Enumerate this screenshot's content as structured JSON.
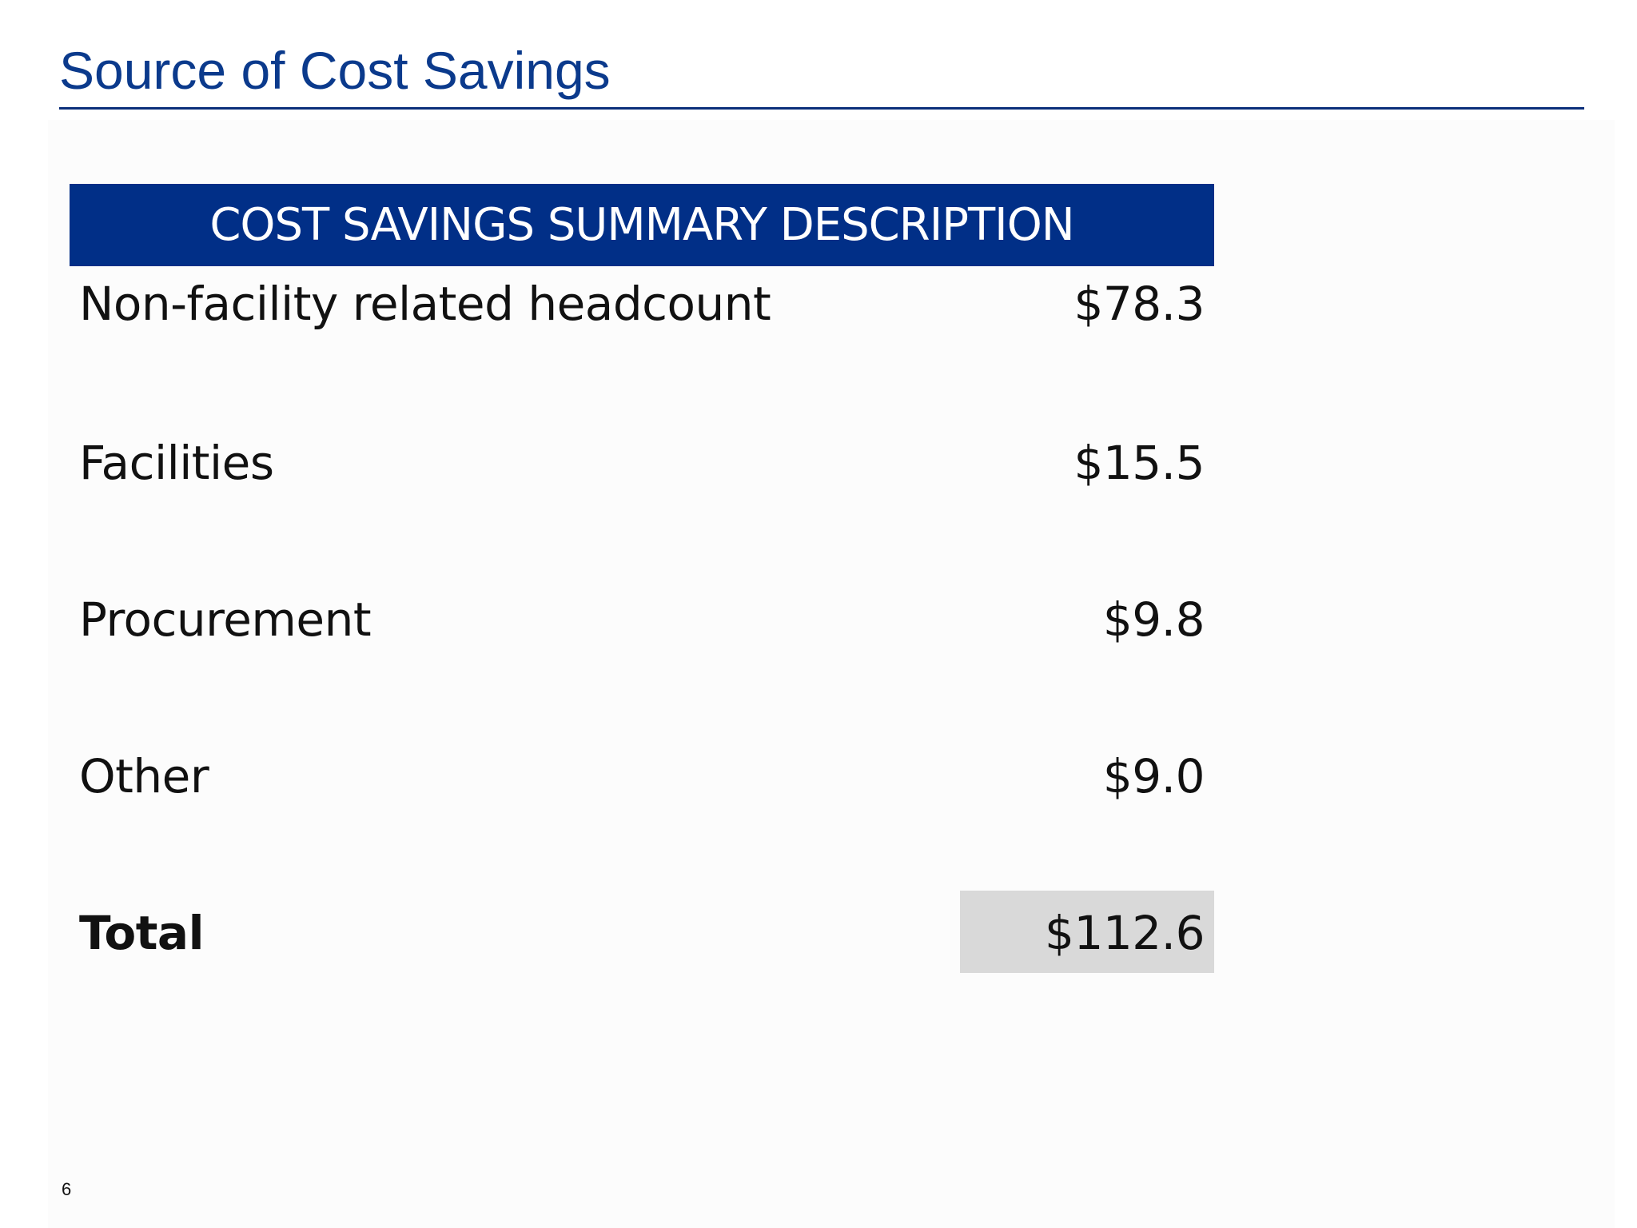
{
  "slide": {
    "title": "Source of Cost Savings",
    "page_number": "6"
  },
  "table": {
    "header": "COST SAVINGS SUMMARY DESCRIPTION",
    "rows": [
      {
        "label": "Non-facility related headcount",
        "value": "$78.3"
      },
      {
        "label": "Facilities",
        "value": "$15.5"
      },
      {
        "label": "Procurement",
        "value": "$9.8"
      },
      {
        "label": "Other",
        "value": "$9.0"
      }
    ],
    "total": {
      "label": "Total",
      "value": "$112.6"
    }
  },
  "colors": {
    "title": "#0b3a8c",
    "header_background": "#012f87",
    "total_highlight": "#d9d9d9"
  }
}
